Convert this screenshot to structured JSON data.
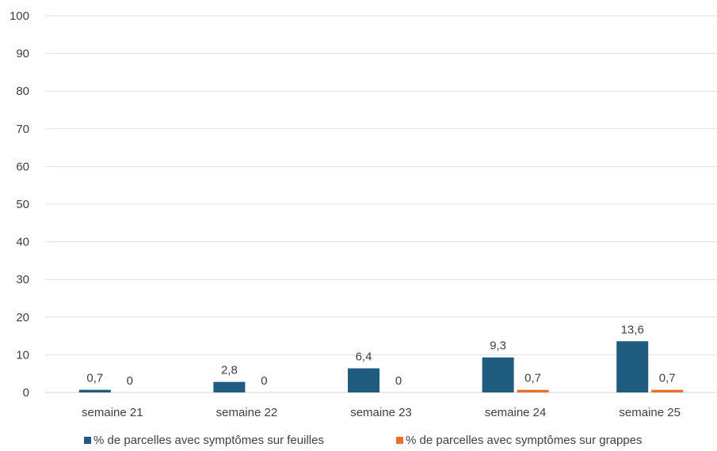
{
  "chart_data": {
    "type": "bar",
    "categories": [
      "semaine 21",
      "semaine 22",
      "semaine 23",
      "semaine 24",
      "semaine 25"
    ],
    "series": [
      {
        "name": "% de parcelles avec symptômes sur feuilles",
        "values": [
          0.7,
          2.8,
          6.4,
          9.3,
          13.6
        ],
        "labels": [
          "0,7",
          "2,8",
          "6,4",
          "9,3",
          "13,6"
        ],
        "color": "#1f5c80"
      },
      {
        "name": "% de parcelles avec symptômes sur grappes",
        "values": [
          0,
          0,
          0,
          0.7,
          0.7
        ],
        "labels": [
          "0",
          "0",
          "0",
          "0,7",
          "0,7"
        ],
        "color": "#e8702a"
      }
    ],
    "ylim": [
      0,
      100
    ],
    "yticks": [
      0,
      10,
      20,
      30,
      40,
      50,
      60,
      70,
      80,
      90,
      100
    ],
    "grid": true,
    "legend_position": "bottom"
  }
}
